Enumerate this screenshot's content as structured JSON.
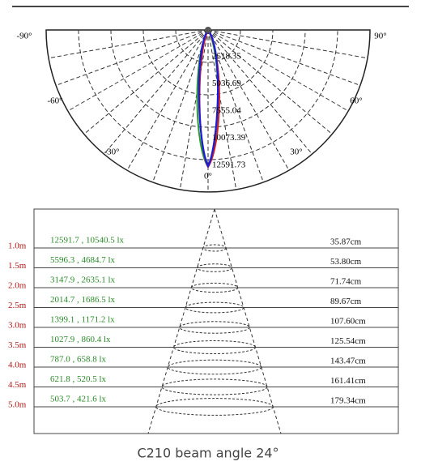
{
  "polar": {
    "angle_labels": [
      "-90°",
      "90°",
      "-60°",
      "60°",
      "-30°",
      "30°",
      "0°"
    ],
    "ring_labels": [
      "2518.35",
      "5036.69",
      "7555.04",
      "10073.39",
      "12591.73"
    ]
  },
  "table": {
    "rows": [
      {
        "distance": "1.0m",
        "illuminance": "12591.7 , 10540.5 lx",
        "diameter": "35.87cm"
      },
      {
        "distance": "1.5m",
        "illuminance": "5596.3 , 4684.7 lx",
        "diameter": "53.80cm"
      },
      {
        "distance": "2.0m",
        "illuminance": "3147.9 , 2635.1 lx",
        "diameter": "71.74cm"
      },
      {
        "distance": "2.5m",
        "illuminance": "2014.7 , 1686.5 lx",
        "diameter": "89.67cm"
      },
      {
        "distance": "3.0m",
        "illuminance": "1399.1 , 1171.2 lx",
        "diameter": "107.60cm"
      },
      {
        "distance": "3.5m",
        "illuminance": "1027.9 , 860.4 lx",
        "diameter": "125.54cm"
      },
      {
        "distance": "4.0m",
        "illuminance": "787.0 , 658.8 lx",
        "diameter": "143.47cm"
      },
      {
        "distance": "4.5m",
        "illuminance": "621.8 , 520.5 lx",
        "diameter": "161.41cm"
      },
      {
        "distance": "5.0m",
        "illuminance": "503.7 , 421.6 lx",
        "diameter": "179.34cm"
      }
    ]
  },
  "caption": "C210 beam angle 24°"
}
